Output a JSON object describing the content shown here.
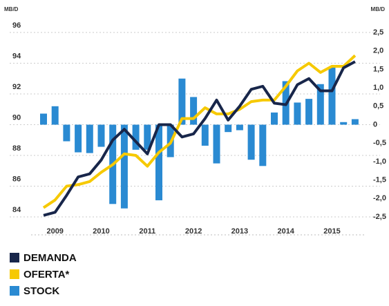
{
  "chart_data": {
    "type": "combo",
    "y_label": "MB/D",
    "y2_label": "MB/D",
    "categories": [
      null,
      "2009",
      null,
      null,
      null,
      "2010",
      null,
      null,
      null,
      "2011",
      null,
      null,
      null,
      "2012",
      null,
      null,
      null,
      "2013",
      null,
      null,
      null,
      "2014",
      null,
      null,
      null,
      "2015",
      null,
      null
    ],
    "series": [
      {
        "name": "DEMANDA",
        "type": "line",
        "color": "#18264a",
        "values": [
          84.1,
          84.3,
          85.4,
          86.6,
          86.8,
          87.7,
          89.0,
          89.7,
          88.9,
          88.1,
          90.0,
          90.0,
          89.2,
          89.4,
          90.4,
          91.6,
          90.3,
          91.2,
          92.3,
          92.5,
          91.4,
          91.3,
          92.6,
          93.0,
          92.2,
          92.2,
          93.7,
          94.1
        ]
      },
      {
        "name": "OFERTA*",
        "type": "line",
        "color": "#f6c900",
        "values": [
          84.6,
          85.1,
          86.0,
          86.1,
          86.3,
          86.9,
          87.4,
          88.1,
          88.0,
          87.3,
          88.2,
          88.8,
          90.4,
          90.4,
          91.1,
          90.7,
          90.7,
          91.0,
          91.5,
          91.6,
          91.6,
          92.5,
          93.5,
          94.0,
          93.4,
          93.8,
          93.8,
          94.5
        ]
      },
      {
        "name": "STOCK",
        "type": "bar",
        "axis": "y2",
        "color": "#2a8ad2",
        "values": [
          0.3,
          0.5,
          -0.45,
          -0.75,
          -0.77,
          -0.6,
          -2.15,
          -2.27,
          -0.68,
          -0.68,
          -2.05,
          -0.88,
          1.25,
          0.75,
          -0.57,
          -1.05,
          -0.2,
          -0.15,
          -0.95,
          -1.12,
          0.33,
          1.18,
          0.6,
          0.7,
          1.1,
          1.55,
          0.07,
          0.15
        ]
      }
    ],
    "ylim": [
      84,
      96
    ],
    "yticks": [
      84,
      86,
      88,
      90,
      92,
      94,
      96
    ],
    "y2lim": [
      -2.5,
      2.5
    ],
    "y2ticks": [
      {
        "value": -2.5,
        "label": "-2,5"
      },
      {
        "value": -2,
        "label": "-2,0"
      },
      {
        "value": -1.5,
        "label": "-1,5"
      },
      {
        "value": -1,
        "label": "-1,0"
      },
      {
        "value": -0.5,
        "label": "-0,5"
      },
      0,
      {
        "value": 0.5,
        "label": "0,5"
      },
      {
        "value": 1,
        "label": "1,0"
      },
      {
        "value": 1.5,
        "label": "1,5"
      },
      {
        "value": 2,
        "label": "2,0"
      },
      {
        "value": 2.5,
        "label": "2,5"
      }
    ],
    "grid": true
  }
}
